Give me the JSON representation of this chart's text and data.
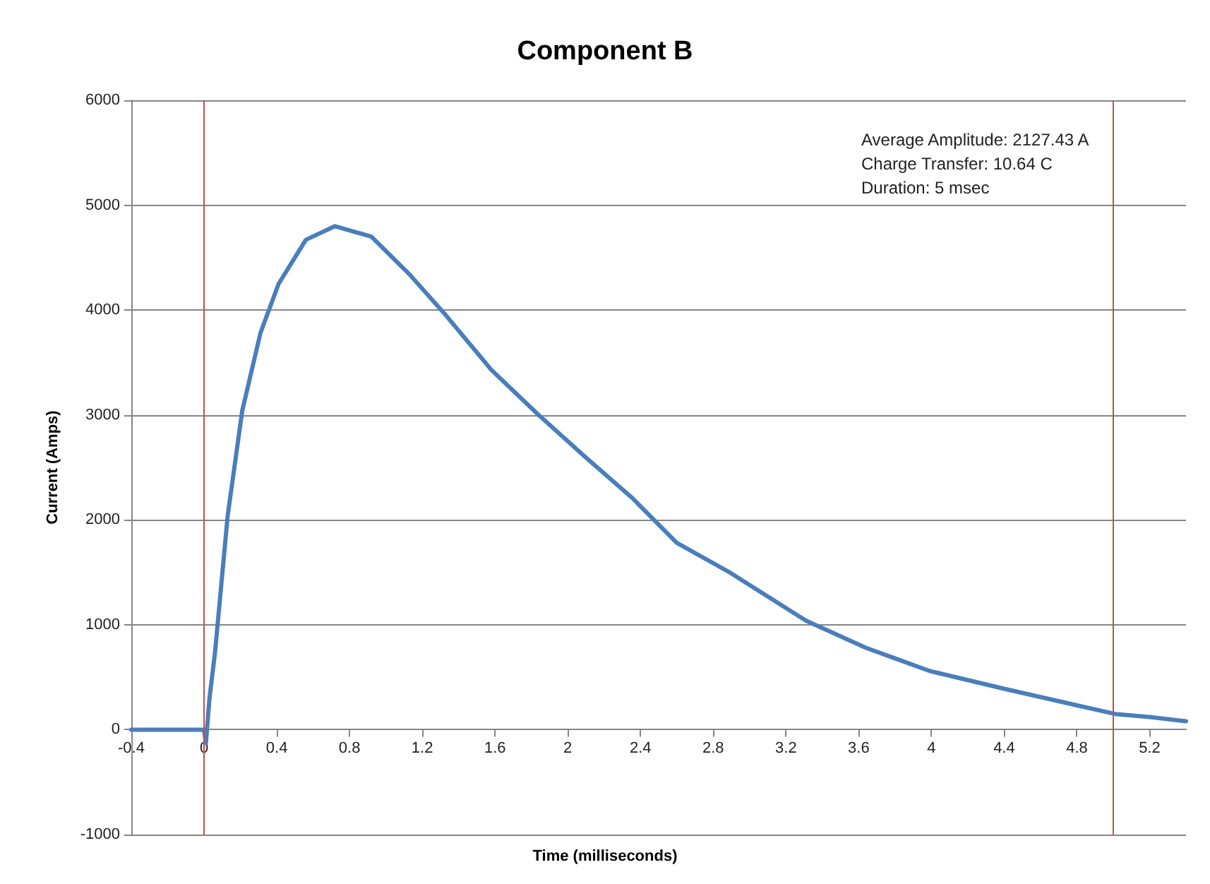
{
  "chart_data": {
    "type": "line",
    "title": "Component B",
    "xlabel": "Time (milliseconds)",
    "ylabel": "Current (Amps)",
    "annotations": [
      "Average Amplitude: 2127.43 A",
      "Charge Transfer: 10.64 C",
      "Duration: 5 msec"
    ],
    "series": [
      {
        "color": "#4a7ebb",
        "x": [
          -0.4,
          -0.2,
          0,
          0.01,
          0.03,
          0.06,
          0.13,
          0.21,
          0.31,
          0.41,
          0.56,
          0.72,
          0.92,
          1.13,
          1.33,
          1.58,
          1.84,
          2.09,
          2.36,
          2.6,
          2.88,
          3.31,
          3.64,
          3.99,
          4.4,
          4.78,
          5.01,
          5.2,
          5.4
        ],
        "values": [
          0,
          0,
          0,
          -130,
          300,
          730,
          2040,
          3040,
          3780,
          4250,
          4670,
          4800,
          4700,
          4340,
          3950,
          3430,
          3000,
          2610,
          2200,
          1780,
          1510,
          1040,
          780,
          560,
          390,
          240,
          150,
          120,
          80
        ]
      }
    ],
    "xlim": [
      -0.4,
      5.4
    ],
    "xticks": [
      -0.4,
      0,
      0.4,
      0.8,
      1.2,
      1.6,
      2,
      2.4,
      2.8,
      3.2,
      3.6,
      4,
      4.4,
      4.8,
      5.2
    ],
    "ylim": [
      -1000,
      6000
    ],
    "yticks": [
      -1000,
      0,
      1000,
      2000,
      3000,
      4000,
      5000,
      6000
    ],
    "ref_lines": [
      {
        "axis": "x",
        "value": 0,
        "color": "#c0504d"
      },
      {
        "axis": "x",
        "value": 5,
        "color": "#c0504d"
      }
    ],
    "grid": "y",
    "marker": "none",
    "line_style": "solid"
  }
}
